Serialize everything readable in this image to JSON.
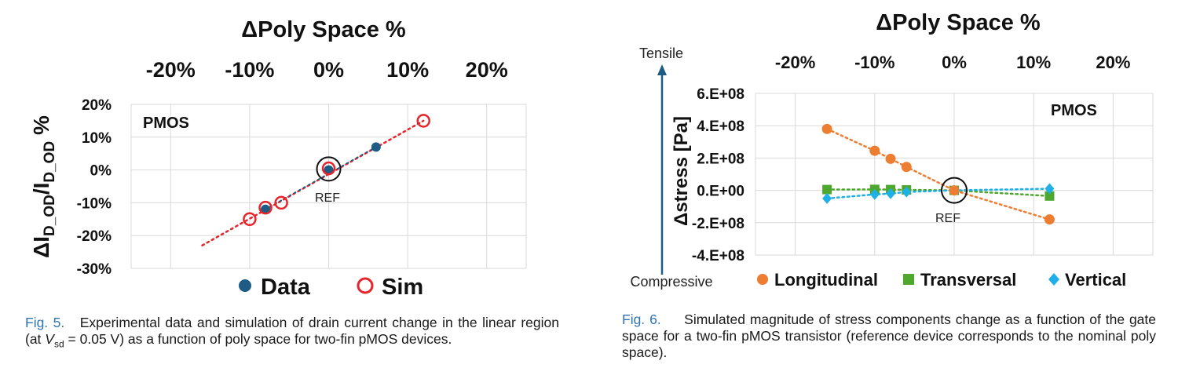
{
  "chart_data": [
    {
      "type": "scatter",
      "title": "ΔPoly Space %",
      "xlabel": "ΔPoly Space %",
      "ylabel": "ΔI_D_OD/I_D_OD %",
      "xlim": [
        -0.25,
        0.25
      ],
      "ylim": [
        -0.3,
        0.2
      ],
      "x_ticks": [
        "-20%",
        "-10%",
        "0%",
        "10%",
        "20%"
      ],
      "y_ticks": [
        "20%",
        "10%",
        "0%",
        "-10%",
        "-20%",
        "-30%"
      ],
      "x_axis_position": "top",
      "grid": true,
      "legend_position": "bottom",
      "annotations": [
        "PMOS",
        "REF"
      ],
      "series": [
        {
          "name": "Data",
          "marker": "filled-circle",
          "color": "#1f5c85",
          "x": [
            -0.08,
            0.0,
            0.06
          ],
          "y": [
            -0.12,
            0.0,
            0.07
          ]
        },
        {
          "name": "Sim",
          "marker": "open-circle",
          "color": "#e8232a",
          "x": [
            -0.1,
            -0.08,
            -0.06,
            0.0,
            0.12
          ],
          "y": [
            -0.15,
            -0.115,
            -0.1,
            0.005,
            0.15
          ]
        }
      ],
      "trendline": {
        "color": "#e8232a",
        "style": "dotted",
        "x": [
          -0.16,
          0.12
        ],
        "y": [
          -0.23,
          0.15
        ]
      }
    },
    {
      "type": "line",
      "title": "ΔPoly Space %",
      "xlabel": "ΔPoly Space %",
      "ylabel": "Δstress [Pa]",
      "xlim": [
        -0.25,
        0.25
      ],
      "ylim": [
        -400000000,
        600000000
      ],
      "x_ticks": [
        "-20%",
        "-10%",
        "0%",
        "10%",
        "20%"
      ],
      "y_ticks": [
        "6.E+08",
        "4.E+08",
        "2.E+08",
        "0.E+00",
        "-2.E+08",
        "-4.E+08"
      ],
      "x_axis_position": "top",
      "grid": true,
      "legend_position": "bottom",
      "annotations": [
        "PMOS",
        "REF",
        "Tensile",
        "Compressive"
      ],
      "x": [
        -0.16,
        -0.1,
        -0.08,
        -0.06,
        0.0,
        0.12
      ],
      "series": [
        {
          "name": "Longitudinal",
          "marker": "circle",
          "color": "#ed7d31",
          "values": [
            380000000,
            245000000,
            195000000,
            145000000,
            0,
            -180000000
          ]
        },
        {
          "name": "Transversal",
          "marker": "square",
          "color": "#4ea72e",
          "values": [
            5000000,
            6000000,
            5000000,
            3000000,
            0,
            -35000000
          ]
        },
        {
          "name": "Vertical",
          "marker": "diamond",
          "color": "#1eb0e6",
          "values": [
            -50000000,
            -25000000,
            -20000000,
            -10000000,
            0,
            10000000
          ]
        }
      ]
    }
  ],
  "captions": [
    {
      "fig": "Fig. 5.",
      "text_before": "Experimental data and simulation of drain current change in the linear region (at ",
      "var": "V",
      "sub": "sd",
      "text_after": " = 0.05 V) as a function of poly space for two-fin pMOS devices."
    },
    {
      "fig": "Fig. 6.",
      "text": "Simulated magnitude of stress components change as a function of the gate space for a two-fin pMOS transistor (reference device corresponds to the nominal poly space)."
    }
  ]
}
